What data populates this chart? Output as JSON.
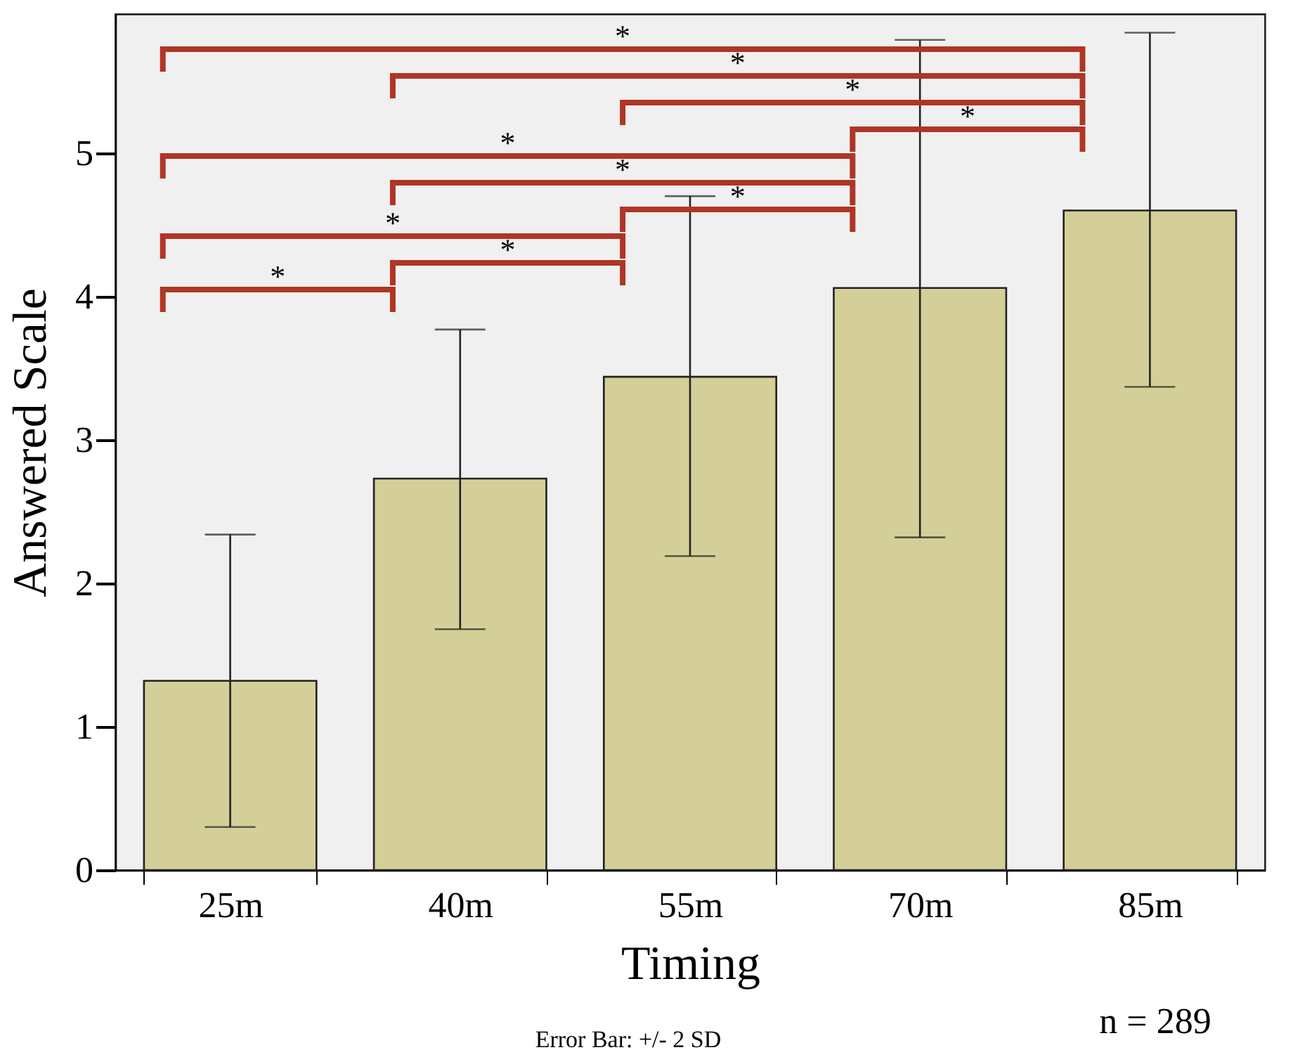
{
  "chart_data": {
    "type": "bar",
    "xlabel": "Timing",
    "ylabel": "Answered Scale",
    "categories": [
      "25m",
      "40m",
      "55m",
      "70m",
      "85m"
    ],
    "values": [
      1.32,
      2.73,
      3.44,
      4.06,
      4.6
    ],
    "errors": [
      [
        0.3,
        2.34
      ],
      [
        1.68,
        3.77
      ],
      [
        2.19,
        4.7
      ],
      [
        2.32,
        5.79
      ],
      [
        3.37,
        5.84
      ]
    ],
    "color": "#d4cf98",
    "ylim": [
      0,
      5.97
    ],
    "yticks": [
      0,
      1,
      2,
      3,
      4,
      5
    ],
    "grid": false,
    "annotations": [
      "*",
      "*",
      "*",
      "*",
      "*",
      "*",
      "*",
      "*",
      "*",
      "*",
      "Error Bar: +/- 2 SD",
      "n = 289"
    ]
  }
}
